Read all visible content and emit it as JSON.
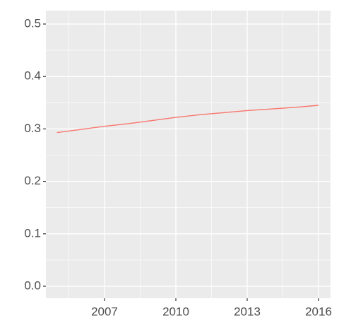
{
  "chart_data": {
    "type": "line",
    "x": [
      2005,
      2006,
      2007,
      2008,
      2009,
      2010,
      2011,
      2012,
      2013,
      2014,
      2015,
      2016
    ],
    "series": [
      {
        "color": "#f8766d",
        "values": [
          0.293,
          0.299,
          0.305,
          0.31,
          0.316,
          0.322,
          0.327,
          0.331,
          0.335,
          0.338,
          0.341,
          0.345
        ]
      }
    ],
    "xlim": [
      2004.535,
      2016.505
    ],
    "ylim": [
      -0.0229,
      0.5256
    ],
    "xticks": [
      2007,
      2010,
      2013,
      2016
    ],
    "yticks": [
      {
        "value": 0,
        "label": "0.0"
      },
      0.1,
      0.2,
      0.3,
      0.4,
      0.5
    ],
    "minor_xticks": [
      2005.5,
      2008.5,
      2011.5,
      2014.5
    ],
    "minor_yticks": [
      0.05,
      0.15,
      0.25,
      0.35,
      0.45
    ],
    "grid": true
  }
}
